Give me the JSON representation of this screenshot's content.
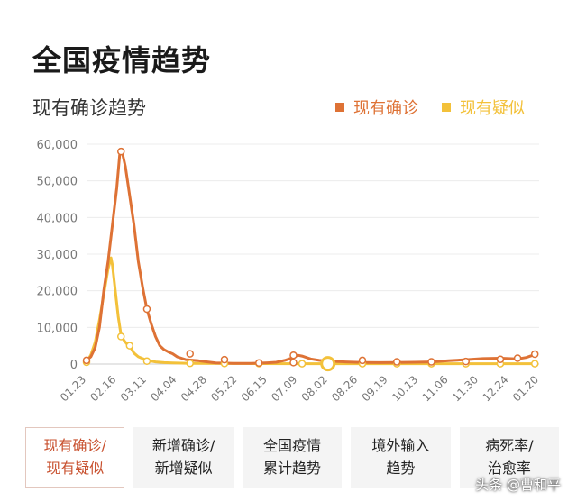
{
  "page": {
    "title": "全国疫情趋势",
    "watermark": "头条 @曹和平"
  },
  "colors": {
    "confirmed": "#de7235",
    "suspected": "#f3c13a",
    "grid": "#ececec",
    "axis_text": "#777777"
  },
  "tabs": [
    {
      "label": "现有确诊/\n现有疑似",
      "active": true
    },
    {
      "label": "新增确诊/\n新增疑似",
      "active": false
    },
    {
      "label": "全国疫情\n累计趋势",
      "active": false
    },
    {
      "label": "境外输入\n趋势",
      "active": false
    },
    {
      "label": "病死率/\n治愈率",
      "active": false
    }
  ],
  "chart_data": {
    "type": "line",
    "title": "现有确诊趋势",
    "legend_position": "top-right",
    "grid": true,
    "x_ticks": [
      "01.23",
      "02.16",
      "03.11",
      "04.04",
      "04.28",
      "05.22",
      "06.15",
      "07.09",
      "08.02",
      "08.26",
      "09.19",
      "10.13",
      "11.06",
      "11.30",
      "12.24",
      "01.20"
    ],
    "y_ticks": [
      "0",
      "10,000",
      "20,000",
      "30,000",
      "40,000",
      "50,000",
      "60,000"
    ],
    "ylim": [
      0,
      60000
    ],
    "series": [
      {
        "name": "现有确诊",
        "points": [
          [
            0,
            1000
          ],
          [
            3,
            2000
          ],
          [
            6,
            4500
          ],
          [
            9,
            10000
          ],
          [
            12,
            20000
          ],
          [
            15,
            28000
          ],
          [
            18,
            38000
          ],
          [
            21,
            48000
          ],
          [
            23,
            57000
          ],
          [
            24,
            58000
          ],
          [
            25,
            57500
          ],
          [
            27,
            54000
          ],
          [
            30,
            46000
          ],
          [
            33,
            38000
          ],
          [
            36,
            28000
          ],
          [
            39,
            21000
          ],
          [
            42,
            15000
          ],
          [
            45,
            11000
          ],
          [
            48,
            7500
          ],
          [
            51,
            5000
          ],
          [
            54,
            3900
          ],
          [
            57,
            3300
          ],
          [
            60,
            2800
          ],
          [
            63,
            2000
          ],
          [
            66,
            1600
          ],
          [
            69,
            1200
          ],
          [
            72,
            1100
          ],
          [
            75,
            1000
          ],
          [
            78,
            900
          ],
          [
            84,
            600
          ],
          [
            90,
            300
          ],
          [
            96,
            250
          ],
          [
            102,
            200
          ],
          [
            108,
            180
          ],
          [
            114,
            200
          ],
          [
            120,
            250
          ],
          [
            126,
            350
          ],
          [
            132,
            500
          ],
          [
            138,
            1000
          ],
          [
            144,
            1800
          ],
          [
            147,
            2400
          ],
          [
            150,
            2200
          ],
          [
            153,
            1800
          ],
          [
            156,
            1400
          ],
          [
            162,
            1000
          ],
          [
            168,
            800
          ],
          [
            180,
            600
          ],
          [
            192,
            450
          ],
          [
            204,
            400
          ],
          [
            216,
            450
          ],
          [
            228,
            500
          ],
          [
            240,
            600
          ],
          [
            252,
            900
          ],
          [
            264,
            1200
          ],
          [
            276,
            1500
          ],
          [
            288,
            1600
          ],
          [
            300,
            1400
          ],
          [
            306,
            1800
          ],
          [
            312,
            2600
          ]
        ],
        "markers": [
          [
            0,
            1000
          ],
          [
            24,
            58000
          ],
          [
            42,
            15000
          ],
          [
            72,
            2800
          ],
          [
            96,
            1200
          ],
          [
            120,
            300
          ],
          [
            144,
            400
          ],
          [
            168,
            500
          ],
          [
            144,
            2400
          ],
          [
            192,
            1000
          ],
          [
            216,
            600
          ],
          [
            240,
            600
          ],
          [
            264,
            700
          ],
          [
            288,
            1300
          ],
          [
            300,
            1600
          ],
          [
            312,
            2700
          ]
        ]
      },
      {
        "name": "现有疑似",
        "points": [
          [
            0,
            500
          ],
          [
            3,
            2500
          ],
          [
            6,
            6000
          ],
          [
            9,
            12000
          ],
          [
            12,
            19000
          ],
          [
            15,
            26000
          ],
          [
            17,
            29000
          ],
          [
            18,
            27000
          ],
          [
            20,
            20000
          ],
          [
            22,
            13000
          ],
          [
            24,
            8000
          ],
          [
            26,
            6500
          ],
          [
            28,
            5500
          ],
          [
            30,
            5000
          ],
          [
            33,
            3000
          ],
          [
            36,
            2000
          ],
          [
            39,
            1500
          ],
          [
            42,
            1000
          ],
          [
            48,
            600
          ],
          [
            54,
            400
          ],
          [
            60,
            300
          ],
          [
            72,
            200
          ],
          [
            96,
            150
          ],
          [
            120,
            120
          ],
          [
            144,
            100
          ],
          [
            150,
            100
          ],
          [
            168,
            100
          ],
          [
            192,
            100
          ],
          [
            216,
            100
          ],
          [
            240,
            100
          ],
          [
            264,
            100
          ],
          [
            288,
            100
          ],
          [
            312,
            100
          ]
        ],
        "markers": [
          [
            0,
            500
          ],
          [
            24,
            7500
          ],
          [
            30,
            5000
          ],
          [
            42,
            800
          ],
          [
            72,
            200
          ],
          [
            96,
            150
          ],
          [
            120,
            120
          ],
          [
            150,
            100
          ],
          [
            168,
            100
          ],
          [
            192,
            100
          ],
          [
            216,
            100
          ],
          [
            240,
            100
          ],
          [
            264,
            100
          ],
          [
            288,
            100
          ],
          [
            312,
            100
          ]
        ]
      }
    ]
  }
}
